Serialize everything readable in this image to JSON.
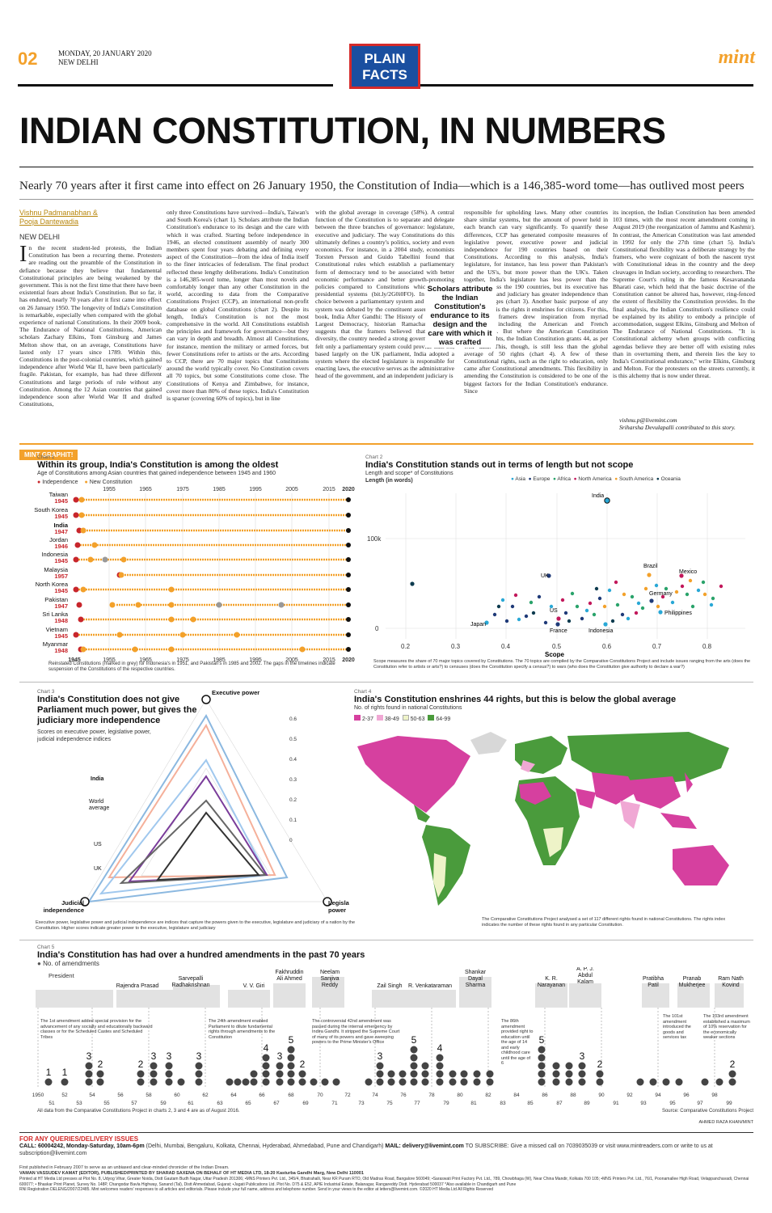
{
  "masthead": {
    "page": "02",
    "date_line1": "MONDAY, 20 JANUARY 2020",
    "date_line2": "NEW DELHI",
    "logo_line1": "PLAIN",
    "logo_line2": "FACTS",
    "brand": "mint"
  },
  "headline": "INDIAN CONSTITUTION, IN NUMBERS",
  "standfirst": "Nearly 70 years after it first came into effect on 26 January 1950, the Constitution of India—which is a 146,385-word tome—has outlived most peers",
  "byline": {
    "author1": "Vishnu Padmanabhan &",
    "author2": "Pooja Dantewadia",
    "place": "NEW DELHI"
  },
  "article": {
    "col1_dropcap": "I",
    "col1": "n the recent student-led protests, the Indian Constitution has been a recurring theme. Protesters are reading out the preamble of the Constitution in defiance because they believe that fundamental Constitutional principles are being weakened by the government. This is not the first time that there have been existential fears about India's Constitution. But so far, it has endured, nearly 70 years after it first came into effect on 26 January 1950. The longevity of India's Constitution is remarkable, especially when compared with the global experience of national Constitutions. In their 2009 book, The Endurance of National Constitutions, American scholars Zachary Elkins, Tom Ginsburg and James Melton show that, on an average, Constitutions have lasted only 17 years since 1789. Within this, Constitutions in the post-colonial countries, which gained independence after World War II, have been particularly fragile. Pakistan, for example, has had three different Constitutions and large periods of rule without any Constitution. Among the 12 Asian countries that gained independence soon after World War II and drafted Constitutions,",
    "col2": "only three Constitutions have survived—India's, Taiwan's and South Korea's (chart 1). Scholars attribute the Indian Constitution's endurance to its design and the care with which it was crafted. Starting before independence in 1946, an elected constituent assembly of nearly 300 members spent four years debating and defining every aspect of the Constitution—from the idea of India itself to the finer intricacies of federalism. The final product reflected these lengthy deliberations. India's Constitution is a 146,385-word tome, longer than most novels and comfortably longer than any other Constitution in the world, according to data from the Comparative Constitutions Project (CCP), an international non-profit database on global Constitutions (chart 2). Despite its length, India's Constitution is not the most comprehensive in the world. All Constitutions establish the principles and framework for governance—but they can vary in depth and breadth. Almost all Constitutions, for instance, mention the military or armed forces, but fewer Constitutions refer to artists or the arts. According to CCP, there are 70 major topics that Constitutions around the world typically cover. No Constitution covers all 70 topics, but some Constitutions come close. The Constitutions of Kenya and Zimbabwe, for instance, cover more than 80% of these topics. India's Constitution is sparser (covering 60% of topics), but in line",
    "col3": "with the global average in coverage (58%). A central function of the Constitution is to separate and delegate between the three branches of governance: legislature, executive and judiciary. The way Constitutions do this ultimately defines a country's politics, society and even economics. For instance, in a 2004 study, economists Torsten Persson and Guido Tabellini found that Constitutional rules which establish a parliamentary form of democracy tend to be associated with better economic performance and better growth-promoting policies compared to Constitutions which establish presidential systems (bit.ly/2G0i0FO). In India, the choice between a parliamentary system and presidential system was debated by the constituent assembly. In his book, India After Gandhi: The History of the World's Largest Democracy, historian Ramachandra Guha suggests that the framers believed that given its diversity, the country needed a strong government. They felt only a parliamentary system could provide this. So, based largely on the UK parliament, India adopted a system where the elected legislature is responsible for enacting laws, the executive serves as the administrative head of the government, and an independent judiciary is",
    "col4": "responsible for upholding laws. Many other countries share similar systems, but the amount of power held in each branch can vary significantly. To quantify these differences, CCP has generated composite measures of legislative power, executive power and judicial independence for 190 countries based on their Constitutions. According to this analysis, India's legislature, for instance, has less power than Pakistan's and the US's, but more power than the UK's. Taken together, India's legislature has less power than the average across the 190 countries, but its executive has more power and judiciary has greater independence than global averages (chart 3). Another basic purpose of any Constitution is the rights it enshrines for citizens. For this, the Indian framers drew inspiration from myriad influences, including the American and French Constitutions. But where the American Constitution grants 35 rights, the Indian Constitution grants 44, as per CCP data. This, though, is still less than the global average of 50 rights (chart 4). A few of these Constitutional rights, such as the right to education, only came after Constitutional amendments. This flexibility in amending the Constitution is considered to be one of the biggest factors for the Indian Constitution's endurance. Since",
    "col5": "its inception, the Indian Constitution has been amended 103 times, with the most recent amendment coming in August 2019 (the reorganization of Jammu and Kashmir). In contrast, the American Constitution was last amended in 1992 for only the 27th time (chart 5). India's Constitutional flexibility was a deliberate strategy by the framers, who were cognizant of both the nascent tryst with Constitutional ideas in the country and the deep cleavages in Indian society, according to researchers. The Supreme Court's ruling in the famous Kesavananda Bharati case, which held that the basic doctrine of the Constitution cannot be altered has, however, ring-fenced the extent of flexibility the Constitution provides. In the final analysis, the Indian Constitution's resilience could be explained by its ability to embody a principle of accommodation, suggest Elkins, Ginsburg and Melton of The Endurance of National Constitutions. \"It is Constitutional alchemy when groups with conflicting agendas believe they are better off with existing rules than in overturning them, and therein lies the key to India's Constitutional endurance,\" write Elkins, Ginsburg and Melton. For the protesters on the streets currently, it is this alchemy that is now under threat.",
    "email": "vishnu.p@livemint.com",
    "credit": "Sriharsha Devulapalli contributed to this story."
  },
  "pull_quote": "Scholars attribute the Indian Constitution's endurance to its design and the care with which it was crafted",
  "band_label": "MINT GRAPHIT!",
  "chart1": {
    "label": "Chart 1",
    "title": "Within its group, India's Constitution is among the oldest",
    "subtitle": "Age of Constitutions among Asian countries that gained independence between 1945 and 1960",
    "legend_independence": "Independence",
    "legend_new": "New Constitution",
    "year_2020": "2020",
    "note": "Reinstated Constitutions (marked in grey) for Indonesia's in 1951, and Pakistan's in 1985 and 2002. The gaps in the timelines indicate suspension of the Constitutions of the respective countries.",
    "colors": {
      "independence": "#c8262c",
      "new": "#f3a12b",
      "reinstated": "#999999"
    }
  },
  "chart2": {
    "label": "Chart 2",
    "title": "India's Constitution stands out in terms of length but not scope",
    "subtitle": "Length and scope* of Constitutions",
    "ylabel": "Length (in words)",
    "xlabel": "Scope",
    "note": "Scope measures the share of 70 major topics covered by Constitutions. The 70 topics are compiled by the Comparative Constitutions Project and include issues ranging from the arts (does the Constitution refer to artists or arts?) to censuses (does the Constitution specify a census?) to wars (who does the Constitution give authority to declare a war?)",
    "regions": [
      {
        "name": "Asia",
        "color": "#29a8d6"
      },
      {
        "name": "Europe",
        "color": "#1f3a78"
      },
      {
        "name": "Africa",
        "color": "#2aa36b"
      },
      {
        "name": "North America",
        "color": "#c2185b"
      },
      {
        "name": "South America",
        "color": "#f3a12b"
      },
      {
        "name": "Oceania",
        "color": "#0d3b4f"
      }
    ]
  },
  "chart3": {
    "label": "Chart 3",
    "title": "India's Constitution does not give Parliament much power, but gives the judiciary more independence",
    "subtitle": "Scores on executive power, legislative power, judicial independence indices",
    "axis_exec": "Executive power",
    "axis_leg": "Legislative power",
    "axis_jud": "Judicial independence",
    "note": "Executive power, legislative power and judicial independence are indices that capture the powers given to the executive, legislature and judiciary of a nation by the Constitution. Higher scores indicate greater power to the executive, legislature and judiciary"
  },
  "chart4": {
    "label": "Chart 4",
    "title": "India's Constitution enshrines 44 rights, but this is below the global average",
    "subtitle": "No. of rights found in national Constitutions",
    "legend": [
      {
        "label": "2-37",
        "color": "#d6409f"
      },
      {
        "label": "38-49",
        "color": "#f0a8d4"
      },
      {
        "label": "50-63",
        "color": "#eef3c8"
      },
      {
        "label": "64-99",
        "color": "#4a9b3c"
      }
    ],
    "note": "The Comparative Constitutions Project analysed a set of 117 different rights found in national Constitutions. The rights index indicates the number of these rights found in any particular Constitution.",
    "nodata_color": "#d8d8d8"
  },
  "chart5": {
    "label": "Chart 5",
    "title": "India's Constitution has had over a hundred amendments in the past 70 years",
    "legend": "No. of amendments",
    "president_label": "President",
    "note_left": "All data from the Comparative Constitutions Project in charts 2, 3 and 4 are as of August 2016.",
    "source": "Source: Comparative Constitutions Project",
    "annotations": [
      "The 1st amendment added special provision for the advancement of any socially and educationally backward classes or for the Scheduled Castes and Scheduled Tribes",
      "The 24th amendment enabled Parliament to dilute fundamental rights through amendments to the Constitution",
      "The controversial 42nd amendment was passed during the internal emergency by Indira Gandhi. It stripped the Supreme Court of many of its powers and gave sweeping powers to the Prime Minister's Office",
      "The 86th amendment provided right to education until the age of 14 and early childhood care until the age of 6",
      "The 101st amendment introduced the goods and services tax",
      "The 103rd amendment established a maximum of 10% reservation for the economically weaker sections"
    ]
  },
  "designer": "AHMED RAZA KHAN/MINT",
  "footer": {
    "queries": "FOR ANY QUERIES/DELIVERY ISSUES",
    "call": "CALL: 60004242, Monday-Saturday, 10am-6pm",
    "cities": "(Delhi, Mumbai, Bengaluru, Kolkata, Chennai, Hyderabad, Ahmedabad, Pune and Chandigarh)",
    "mail": "MAIL: delivery@livemint.com",
    "subscribe": "TO SUBSCRIBE: Give a missed call on 7039035039 or visit www.mintreaders.com or write to us at subscription@livemint.com",
    "first_pub": "First published in February 2007 to serve as an unbiased and clear-minded chronicler of the Indian Dream.",
    "editor": "VAMAN VASSUDEV KAMAT (EDITOR), PUBLISHED/PRINTED BY SHARAD SAXENA ON BEHALF OF HT MEDIA LTD, 18-20 Kasturba Gandhi Marg, New Delhi 110001",
    "printed": "Printed at HT Media Ltd presses at Plot No. 8, Udyog Vihar, Greater Noida, Distt Gautam Budh Nagar, Uttar Pradesh 201306; •MNS Printers Pvt. Ltd., 345/4, Bhatrahalli, Near KR Puram RTO, Old Madras Road, Bangalore 560049; •Saraswati Print Factory Pvt. Ltd., 789, Chowbhaga (W), Near China Mandir, Kolkata 700 105; •MNS Printers Pvt. Ltd., 76/1, Poonamallee High Road, Velappanchavadi, Chennai 600077; • Bhaskar Print Planet, Survey No. 148P, Changodar Bavla Highway, Sanand (Tal), Distt Ahmedabad, Gujarat; •Jagati Publications Ltd. Plot No. D75 & E52, APIE Industrial Estate, Balanagar, Rangareddy Distt. Hyderabad 500037 *Also available in Chandigarh and Pune",
    "rni": "RNI Registration DELENG/2007/22485. Mint welcomes readers' responses to all articles and editorials. Please include your full name, address and telephone number. Send in your views to the editor at letters@livemint.com. ©2020 HT Media Ltd All Rights Reserved"
  }
}
